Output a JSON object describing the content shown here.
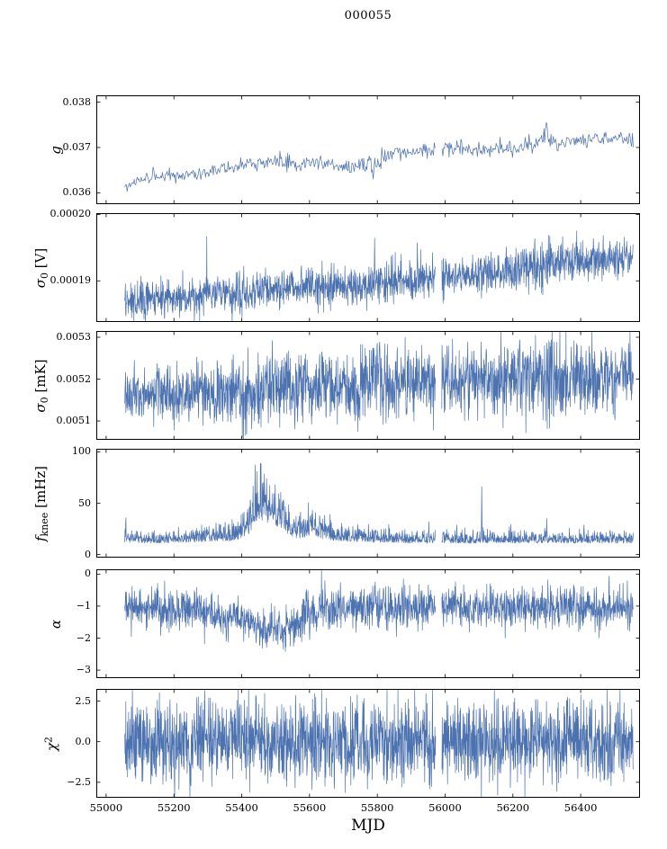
{
  "title": "000055",
  "chart_data": {
    "type": "line",
    "title": "000055",
    "line_color": "#4c72b0",
    "legend": "none",
    "grid": false,
    "x_axis": {
      "label": "MJD",
      "lim": [
        54971,
        56575
      ],
      "ticks": [
        55000,
        55200,
        55400,
        55600,
        55800,
        56000,
        56200,
        56400
      ]
    },
    "gap_x": [
      55972,
      55990
    ],
    "panels": [
      {
        "id": "g",
        "ylabel": "g",
        "ylabel_parts": [
          {
            "text": "g",
            "italic": true
          }
        ],
        "ylim": [
          0.03575,
          0.03815
        ],
        "yticks": [
          {
            "v": 0.036,
            "label": "0.036"
          },
          {
            "v": 0.037,
            "label": "0.037"
          },
          {
            "v": 0.038,
            "label": "0.038"
          }
        ],
        "samples": 650,
        "noise": "symmetric",
        "nodes": [
          [
            55055,
            0.03612,
            5e-05
          ],
          [
            55090,
            0.03628,
            6e-05
          ],
          [
            55150,
            0.03636,
            7e-05
          ],
          [
            55250,
            0.03643,
            7e-05
          ],
          [
            55350,
            0.03654,
            8e-05
          ],
          [
            55420,
            0.03663,
            8e-05
          ],
          [
            55480,
            0.03669,
            8e-05
          ],
          [
            55540,
            0.03667,
            0.0001
          ],
          [
            55600,
            0.03662,
            9e-05
          ],
          [
            55650,
            0.03666,
            8e-05
          ],
          [
            55700,
            0.03661,
            9e-05
          ],
          [
            55760,
            0.03656,
            0.00013
          ],
          [
            55805,
            0.03667,
            0.00014
          ],
          [
            55845,
            0.03687,
            0.0001
          ],
          [
            55905,
            0.03692,
            8e-05
          ],
          [
            55965,
            0.03696,
            9e-05
          ],
          [
            56025,
            0.03699,
            9e-05
          ],
          [
            56085,
            0.03692,
            8e-05
          ],
          [
            56145,
            0.03697,
            9e-05
          ],
          [
            56205,
            0.03701,
            9e-05
          ],
          [
            56265,
            0.03711,
            9e-05
          ],
          [
            56300,
            0.03727,
            0.0001
          ],
          [
            56335,
            0.03701,
            0.00012
          ],
          [
            56385,
            0.03715,
            8e-05
          ],
          [
            56445,
            0.03719,
            8e-05
          ],
          [
            56555,
            0.03717,
            7e-05
          ]
        ],
        "spikes": [
          [
            55788,
            0.03626
          ],
          [
            56298,
            0.03758
          ],
          [
            55445,
            0.03645
          ]
        ]
      },
      {
        "id": "sigma0-V",
        "ylabel": "σ0 [V]",
        "ylabel_parts": [
          {
            "text": "σ",
            "italic": true
          },
          {
            "text": "0",
            "sub": true
          },
          {
            "text": " [V]"
          }
        ],
        "ylim": [
          0.0001838,
          0.0002002
        ],
        "yticks": [
          {
            "v": 0.00019,
            "label": "0.00019"
          },
          {
            "v": 0.0002,
            "label": "0.00020"
          }
        ],
        "samples": 1800,
        "noise": "symmetric",
        "nodes": [
          [
            55055,
            0.0001867,
            1.3e-06
          ],
          [
            55150,
            0.0001872,
            1.3e-06
          ],
          [
            55250,
            0.0001876,
            1.5e-06
          ],
          [
            55350,
            0.000188,
            1.6e-06
          ],
          [
            55450,
            0.0001886,
            1.5e-06
          ],
          [
            55550,
            0.000189,
            1.4e-06
          ],
          [
            55650,
            0.0001891,
            1.4e-06
          ],
          [
            55750,
            0.0001893,
            1.5e-06
          ],
          [
            55850,
            0.0001898,
            1.6e-06
          ],
          [
            55950,
            0.0001903,
            1.6e-06
          ],
          [
            56050,
            0.0001906,
            1.4e-06
          ],
          [
            56150,
            0.0001912,
            1.6e-06
          ],
          [
            56250,
            0.0001922,
            1.8e-06
          ],
          [
            56350,
            0.0001928,
            1.6e-06
          ],
          [
            56450,
            0.0001931,
            1.4e-06
          ],
          [
            56555,
            0.0001934,
            1.3e-06
          ]
        ],
        "spikes": [
          [
            55792,
            0.0001968
          ]
        ]
      },
      {
        "id": "sigma0-mK",
        "ylabel": "σ0 [mK]",
        "ylabel_parts": [
          {
            "text": "σ",
            "italic": true
          },
          {
            "text": "0",
            "sub": true
          },
          {
            "text": " [mK]"
          }
        ],
        "ylim": [
          0.005055,
          0.005315
        ],
        "yticks": [
          {
            "v": 0.0051,
            "label": "0.0051"
          },
          {
            "v": 0.0052,
            "label": "0.0052"
          },
          {
            "v": 0.0053,
            "label": "0.0053"
          }
        ],
        "samples": 1900,
        "noise": "symmetric",
        "nodes": [
          [
            55055,
            0.005168,
            3e-05
          ],
          [
            55150,
            0.00517,
            3.5e-05
          ],
          [
            55250,
            0.005168,
            3.8e-05
          ],
          [
            55330,
            0.005172,
            3.5e-05
          ],
          [
            55420,
            0.00516,
            4.5e-05
          ],
          [
            55500,
            0.005178,
            4e-05
          ],
          [
            55570,
            0.005188,
            4.5e-05
          ],
          [
            55650,
            0.005182,
            4e-05
          ],
          [
            55720,
            0.005178,
            3.8e-05
          ],
          [
            55790,
            0.005198,
            5.5e-05
          ],
          [
            55860,
            0.005188,
            4e-05
          ],
          [
            55950,
            0.005192,
            4.2e-05
          ],
          [
            56050,
            0.005198,
            4e-05
          ],
          [
            56150,
            0.005198,
            4.5e-05
          ],
          [
            56250,
            0.005202,
            4.8e-05
          ],
          [
            56350,
            0.0052,
            4.5e-05
          ],
          [
            56450,
            0.005202,
            4.2e-05
          ],
          [
            56555,
            0.005205,
            4e-05
          ]
        ],
        "spikes": [
          [
            55790,
            0.005298
          ],
          [
            55808,
            0.005288
          ],
          [
            56230,
            0.005282
          ],
          [
            56460,
            0.005272
          ]
        ]
      },
      {
        "id": "fknee",
        "ylabel": "fknee [mHz]",
        "ylabel_parts": [
          {
            "text": "f",
            "italic": true
          },
          {
            "text": "knee",
            "sub": true
          },
          {
            "text": " [mHz]"
          }
        ],
        "ylim": [
          -3,
          103
        ],
        "yticks": [
          {
            "v": 0,
            "label": "0"
          },
          {
            "v": 50,
            "label": "50"
          },
          {
            "v": 100,
            "label": "100"
          }
        ],
        "samples": 1800,
        "noise": "positive",
        "nodes": [
          [
            55055,
            12,
            7
          ],
          [
            55150,
            12,
            6
          ],
          [
            55250,
            13,
            7
          ],
          [
            55320,
            14,
            10
          ],
          [
            55380,
            15,
            10
          ],
          [
            55420,
            22,
            18
          ],
          [
            55445,
            35,
            30
          ],
          [
            55465,
            38,
            32
          ],
          [
            55490,
            32,
            28
          ],
          [
            55520,
            26,
            20
          ],
          [
            55555,
            18,
            12
          ],
          [
            55585,
            17,
            13
          ],
          [
            55605,
            22,
            20
          ],
          [
            55635,
            18,
            16
          ],
          [
            55670,
            15,
            10
          ],
          [
            55720,
            14,
            9
          ],
          [
            55800,
            13,
            8
          ],
          [
            55900,
            12,
            7
          ],
          [
            56000,
            12,
            7
          ],
          [
            56100,
            12,
            7
          ],
          [
            56200,
            12,
            7
          ],
          [
            56300,
            12,
            7
          ],
          [
            56400,
            12,
            7
          ],
          [
            56555,
            12,
            7
          ]
        ],
        "spikes": [
          [
            55058,
            42
          ],
          [
            55952,
            34
          ],
          [
            56108,
            70
          ],
          [
            56300,
            38
          ],
          [
            55985,
            27
          ],
          [
            56410,
            30
          ]
        ]
      },
      {
        "id": "alpha",
        "ylabel": "α",
        "ylabel_parts": [
          {
            "text": "α",
            "italic": true
          }
        ],
        "ylim": [
          -3.25,
          0.15
        ],
        "yticks": [
          {
            "v": 0,
            "label": "0"
          },
          {
            "v": -1,
            "label": "−1"
          },
          {
            "v": -2,
            "label": "−2"
          },
          {
            "v": -3,
            "label": "−3"
          }
        ],
        "samples": 1800,
        "noise": "symmetric",
        "nodes": [
          [
            55055,
            -1.05,
            0.3
          ],
          [
            55150,
            -1.05,
            0.32
          ],
          [
            55250,
            -1.1,
            0.32
          ],
          [
            55300,
            -1.15,
            0.3
          ],
          [
            55340,
            -1.42,
            0.28
          ],
          [
            55380,
            -1.3,
            0.3
          ],
          [
            55430,
            -1.55,
            0.3
          ],
          [
            55470,
            -1.75,
            0.28
          ],
          [
            55520,
            -1.72,
            0.3
          ],
          [
            55560,
            -1.55,
            0.32
          ],
          [
            55600,
            -1.35,
            0.38
          ],
          [
            55640,
            -1.15,
            0.38
          ],
          [
            55690,
            -1.05,
            0.34
          ],
          [
            55800,
            -1.02,
            0.32
          ],
          [
            55900,
            -1.05,
            0.3
          ],
          [
            56000,
            -1.05,
            0.33
          ],
          [
            56100,
            -1.05,
            0.33
          ],
          [
            56200,
            -1.03,
            0.33
          ],
          [
            56300,
            -1.05,
            0.33
          ],
          [
            56400,
            -1.05,
            0.33
          ],
          [
            56555,
            -1.05,
            0.32
          ]
        ],
        "spikes": [
          [
            55600,
            -2.25
          ],
          [
            55470,
            -2.2
          ]
        ]
      },
      {
        "id": "chi2",
        "ylabel": "χ2",
        "ylabel_parts": [
          {
            "text": "χ",
            "italic": true
          },
          {
            "text": "2",
            "sup": true
          }
        ],
        "ylim": [
          -3.45,
          3.25
        ],
        "yticks": [
          {
            "v": 2.5,
            "label": "2.5"
          },
          {
            "v": 0,
            "label": "0.0"
          },
          {
            "v": -2.5,
            "label": "−2.5"
          }
        ],
        "samples": 2000,
        "noise": "symmetric",
        "nodes": [
          [
            55055,
            0,
            1.25
          ],
          [
            56555,
            0,
            1.25
          ]
        ],
        "spikes": [
          [
            55450,
            3.0
          ],
          [
            56290,
            -3.2
          ],
          [
            55650,
            2.9
          ],
          [
            56100,
            2.8
          ],
          [
            55250,
            -2.9
          ]
        ]
      }
    ]
  }
}
